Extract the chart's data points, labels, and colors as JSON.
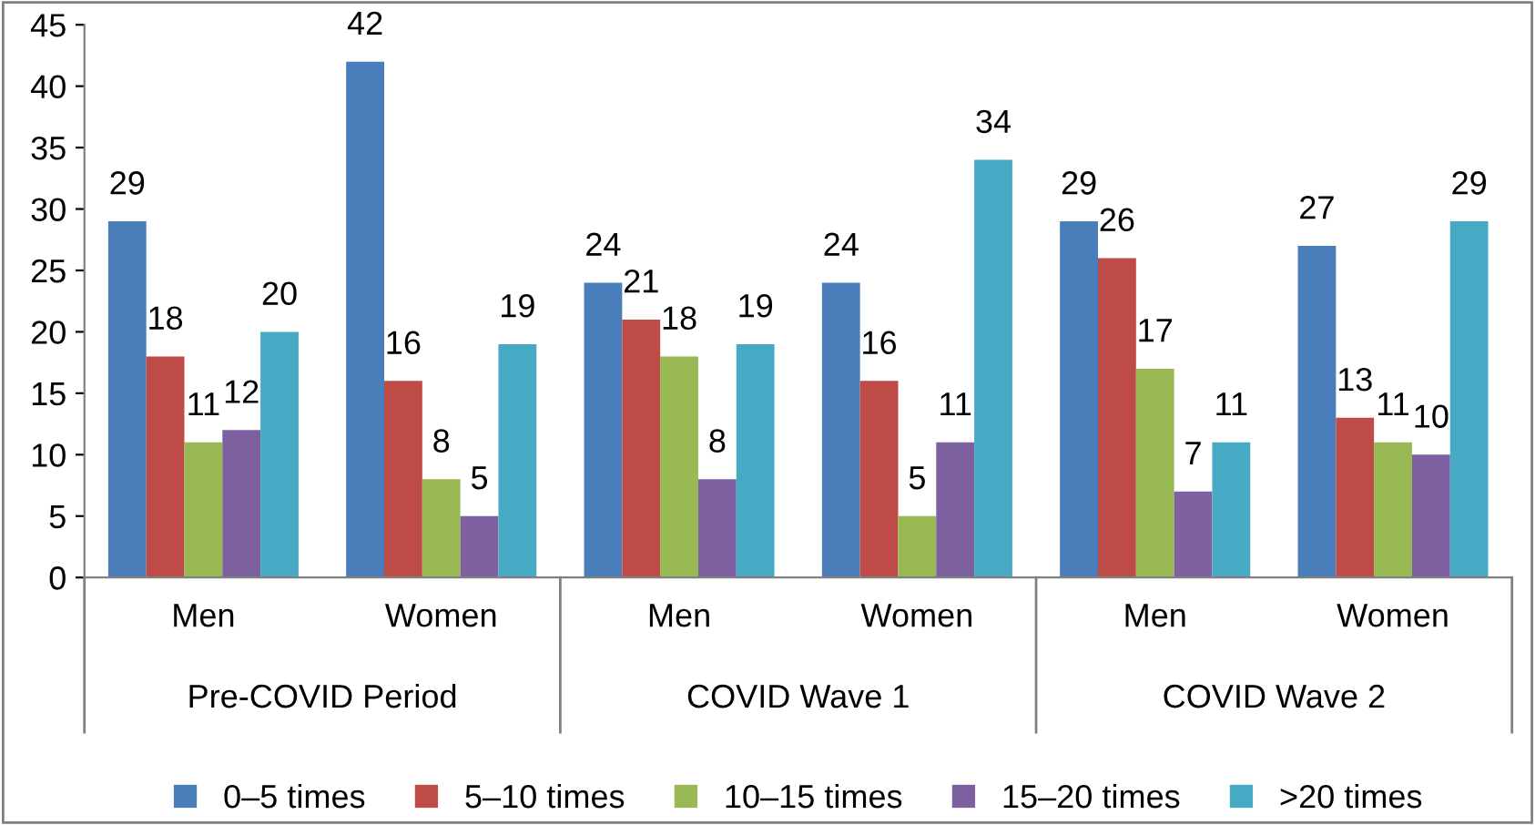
{
  "chart_data": {
    "type": "bar",
    "categories": [
      "Men",
      "Women",
      "Men",
      "Women",
      "Men",
      "Women"
    ],
    "annotations": [
      "Pre-COVID Period",
      "COVID Wave 1",
      "COVID Wave 2"
    ],
    "series": [
      {
        "name": "0–5 times",
        "color": "#4a7ebb",
        "values": [
          29,
          42,
          24,
          24,
          29,
          27
        ]
      },
      {
        "name": "5–10 times",
        "color": "#be4b48",
        "values": [
          18,
          16,
          21,
          16,
          26,
          13
        ]
      },
      {
        "name": "10–15 times",
        "color": "#98b954",
        "values": [
          11,
          8,
          18,
          5,
          17,
          11
        ]
      },
      {
        "name": "15–20 times",
        "color": "#7d60a0",
        "values": [
          12,
          5,
          8,
          11,
          7,
          10
        ]
      },
      {
        "name": ">20 times",
        "color": "#46aac5",
        "values": [
          20,
          19,
          19,
          34,
          11,
          29
        ]
      }
    ],
    "ylim": [
      0,
      45
    ],
    "yticks": [
      0,
      5,
      10,
      15,
      20,
      25,
      30,
      35,
      40,
      45
    ],
    "grid": false,
    "legend": "bottom",
    "data_labels": true
  }
}
